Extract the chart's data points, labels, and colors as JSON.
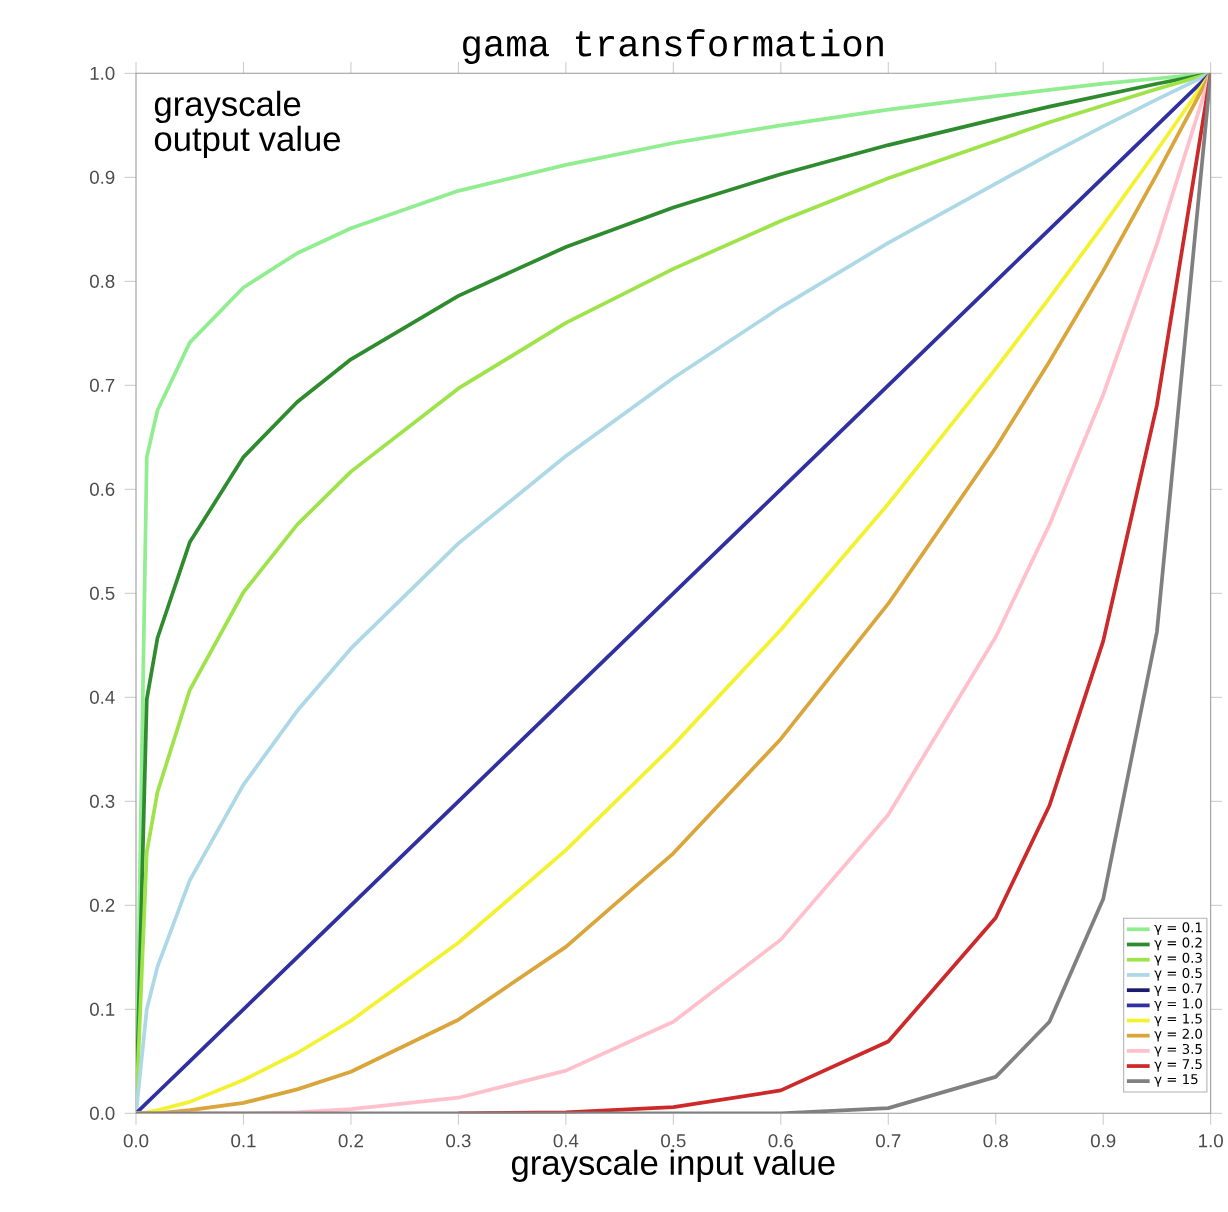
{
  "chart_data": {
    "type": "line",
    "title": "gama transformation",
    "xlabel": "grayscale input value",
    "ylabel": "grayscale output value",
    "x": [
      0,
      0.01,
      0.02,
      0.05,
      0.1,
      0.15,
      0.2,
      0.3,
      0.4,
      0.5,
      0.6,
      0.7,
      0.8,
      0.85,
      0.9,
      0.95,
      1
    ],
    "series": [
      {
        "name": "γ = 0.1",
        "color": "#90ee90",
        "values": [
          0,
          0.631,
          0.676,
          0.741,
          0.794,
          0.827,
          0.851,
          0.887,
          0.912,
          0.933,
          0.95,
          0.965,
          0.978,
          0.984,
          0.99,
          0.995,
          1
        ]
      },
      {
        "name": "γ = 0.2",
        "color": "#2e8b2e",
        "values": [
          0,
          0.398,
          0.457,
          0.549,
          0.631,
          0.684,
          0.725,
          0.786,
          0.833,
          0.871,
          0.903,
          0.931,
          0.956,
          0.968,
          0.979,
          0.99,
          1
        ]
      },
      {
        "name": "γ = 0.3",
        "color": "#9ee34a",
        "values": [
          0,
          0.251,
          0.309,
          0.407,
          0.501,
          0.566,
          0.617,
          0.697,
          0.76,
          0.812,
          0.858,
          0.899,
          0.935,
          0.953,
          0.969,
          0.985,
          1
        ]
      },
      {
        "name": "γ = 0.5",
        "color": "#add8e6",
        "values": [
          0,
          0.1,
          0.141,
          0.224,
          0.316,
          0.387,
          0.447,
          0.548,
          0.632,
          0.707,
          0.775,
          0.837,
          0.894,
          0.922,
          0.949,
          0.975,
          1
        ]
      },
      {
        "name": "γ = 0.7",
        "color": "#1c1c6e",
        "values": [
          null,
          null,
          null,
          null,
          null,
          null,
          null,
          null,
          null,
          null,
          null,
          null,
          null,
          null,
          null,
          null,
          null
        ]
      },
      {
        "name": "γ = 1.0",
        "color": "#3030a0",
        "values": [
          0,
          0.01,
          0.02,
          0.05,
          0.1,
          0.15,
          0.2,
          0.3,
          0.4,
          0.5,
          0.6,
          0.7,
          0.8,
          0.85,
          0.9,
          0.95,
          1
        ]
      },
      {
        "name": "γ = 1.5",
        "color": "#f2f230",
        "values": [
          0,
          0.001,
          0.003,
          0.011,
          0.032,
          0.058,
          0.089,
          0.164,
          0.253,
          0.354,
          0.465,
          0.586,
          0.716,
          0.784,
          0.854,
          0.926,
          1
        ]
      },
      {
        "name": "γ = 2.0",
        "color": "#daa53a",
        "values": [
          0,
          0,
          0,
          0.003,
          0.01,
          0.023,
          0.04,
          0.09,
          0.16,
          0.25,
          0.36,
          0.49,
          0.64,
          0.723,
          0.81,
          0.903,
          1
        ]
      },
      {
        "name": "γ = 3.5",
        "color": "#ffc0cb",
        "values": [
          0,
          0,
          0,
          0,
          0,
          0.001,
          0.004,
          0.015,
          0.041,
          0.088,
          0.167,
          0.287,
          0.458,
          0.566,
          0.691,
          0.836,
          1
        ]
      },
      {
        "name": "γ = 7.5",
        "color": "#cc2a2a",
        "values": [
          null,
          null,
          null,
          null,
          null,
          null,
          null,
          0,
          0.001,
          0.006,
          0.022,
          0.069,
          0.188,
          0.296,
          0.454,
          0.681,
          1
        ]
      },
      {
        "name": "γ = 15",
        "color": "#808080",
        "values": [
          0,
          0,
          0,
          0,
          0,
          0,
          0,
          0,
          0,
          0,
          0,
          0.005,
          0.035,
          0.088,
          0.206,
          0.463,
          1
        ]
      }
    ],
    "xlim": [
      0,
      1
    ],
    "ylim": [
      0,
      1
    ],
    "xticks": [
      {
        "value": 0,
        "label": "0.0"
      },
      0.1,
      0.2,
      0.3,
      0.4,
      0.5,
      0.6,
      0.7,
      0.8,
      0.9,
      {
        "value": 1,
        "label": "1.0"
      }
    ],
    "yticks": [
      {
        "value": 0,
        "label": "0.0"
      },
      0.1,
      0.2,
      0.3,
      0.4,
      0.5,
      0.6,
      0.7,
      0.8,
      0.9,
      {
        "value": 1,
        "label": "1.0"
      }
    ],
    "legend": "bottom right",
    "grid": false,
    "marker": "none",
    "line_style": "solid"
  }
}
